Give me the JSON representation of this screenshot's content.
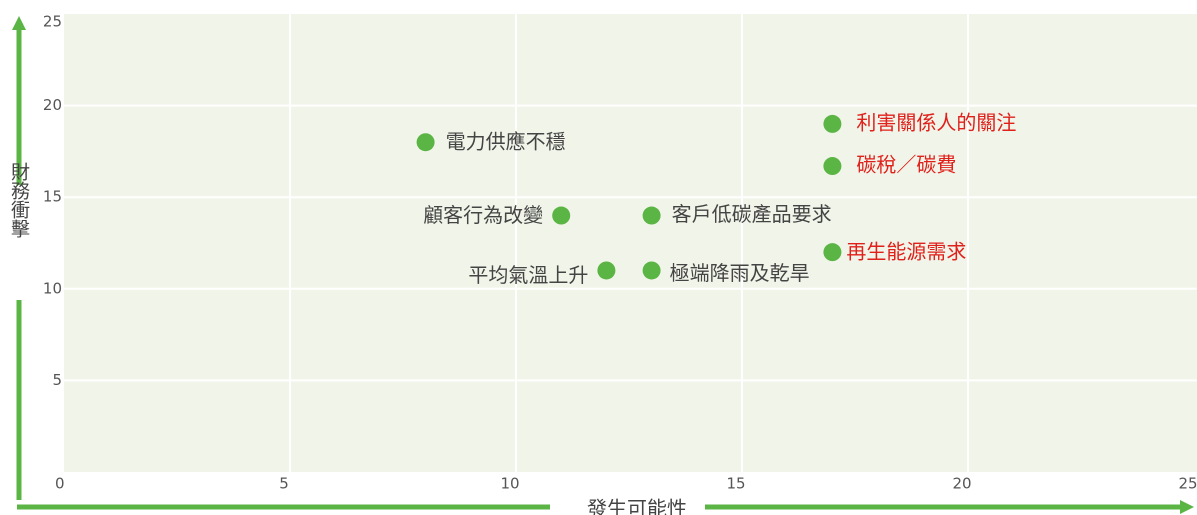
{
  "chart_data": {
    "type": "scatter",
    "x_label": "發生可能性",
    "y_label": "財務衝擊",
    "xlim": [
      0,
      25
    ],
    "ylim": [
      0,
      25
    ],
    "xticks": [
      0,
      5,
      10,
      15,
      20,
      25
    ],
    "yticks": [
      0,
      5,
      10,
      15,
      20,
      25
    ],
    "grid": true,
    "marker_color": "#5bb544",
    "points": [
      {
        "name": "電力供應不穩",
        "x": 8,
        "y": 18,
        "color": "#444444"
      },
      {
        "name": "利害關係人的關注",
        "x": 17,
        "y": 19,
        "color": "#e0201b"
      },
      {
        "name": "碳稅／碳費",
        "x": 17,
        "y": 16.7,
        "color": "#e0201b"
      },
      {
        "name": "顧客行為改變",
        "x": 11,
        "y": 14,
        "color": "#444444"
      },
      {
        "name": "客戶低碳產品要求",
        "x": 13,
        "y": 14,
        "color": "#444444"
      },
      {
        "name": "再生能源需求",
        "x": 17,
        "y": 12,
        "color": "#e0201b"
      },
      {
        "name": "平均氣溫上升",
        "x": 12,
        "y": 11,
        "color": "#444444"
      },
      {
        "name": "極端降雨及乾旱",
        "x": 13,
        "y": 11,
        "color": "#444444"
      }
    ]
  }
}
